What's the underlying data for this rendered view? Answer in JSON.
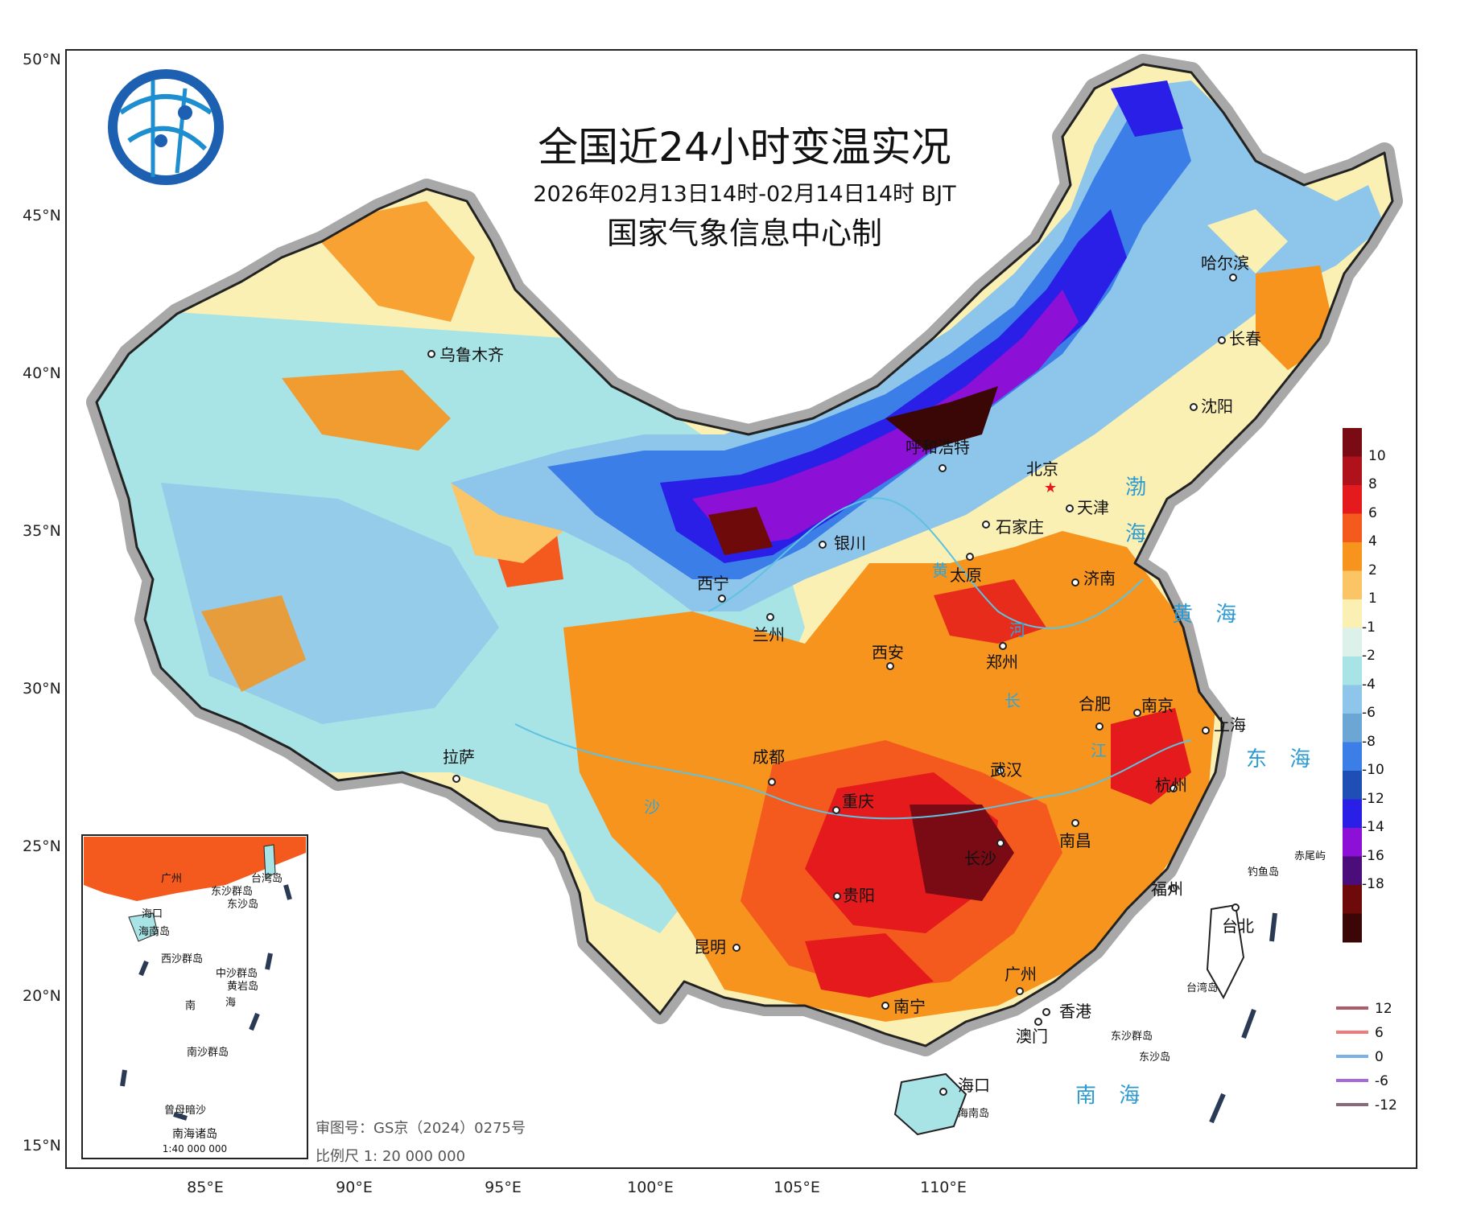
{
  "title": "全国近24小时变温实况",
  "subtitle": "2026年02月13日14时-02月14日14时 BJT",
  "producer": "国家气象信息中心制",
  "lat_labels": [
    "50°N",
    "45°N",
    "40°N",
    "35°N",
    "30°N",
    "25°N",
    "20°N",
    "15°N"
  ],
  "lon_labels": [
    "85°E",
    "90°E",
    "95°E",
    "100°E",
    "105°E",
    "110°E"
  ],
  "cities": [
    {
      "name": "乌鲁木齐"
    },
    {
      "name": "哈尔滨"
    },
    {
      "name": "长春"
    },
    {
      "name": "沈阳"
    },
    {
      "name": "呼和浩特"
    },
    {
      "name": "北京"
    },
    {
      "name": "天津"
    },
    {
      "name": "石家庄"
    },
    {
      "name": "银川"
    },
    {
      "name": "太原"
    },
    {
      "name": "济南"
    },
    {
      "name": "西宁"
    },
    {
      "name": "兰州"
    },
    {
      "name": "西安"
    },
    {
      "name": "郑州"
    },
    {
      "name": "合肥"
    },
    {
      "name": "南京"
    },
    {
      "name": "上海"
    },
    {
      "name": "拉萨"
    },
    {
      "name": "成都"
    },
    {
      "name": "武汉"
    },
    {
      "name": "杭州"
    },
    {
      "name": "重庆"
    },
    {
      "name": "长沙"
    },
    {
      "name": "南昌"
    },
    {
      "name": "福州"
    },
    {
      "name": "贵阳"
    },
    {
      "name": "台北"
    },
    {
      "name": "昆明"
    },
    {
      "name": "广州"
    },
    {
      "name": "南宁"
    },
    {
      "name": "香港"
    },
    {
      "name": "澳门"
    },
    {
      "name": "海口"
    },
    {
      "name": "台湾岛"
    },
    {
      "name": "海南岛"
    },
    {
      "name": "钓鱼岛"
    },
    {
      "name": "赤尾屿"
    },
    {
      "name": "东沙群岛"
    },
    {
      "name": "东沙岛"
    }
  ],
  "seas": [
    {
      "name": "渤"
    },
    {
      "name": "海"
    },
    {
      "name": "黄 海"
    },
    {
      "name": "东 海"
    },
    {
      "name": "南 海"
    }
  ],
  "rivers": [
    {
      "name": "黄"
    },
    {
      "name": "河"
    },
    {
      "name": "长"
    },
    {
      "name": "江"
    },
    {
      "name": "沙"
    }
  ],
  "inset": {
    "title": "南海诸岛",
    "scale": "1:40 000 000",
    "labels": [
      "海口",
      "海南岛",
      "西沙群岛",
      "中沙群岛",
      "黄岩岛",
      "南",
      "海",
      "南沙群岛",
      "曾母暗沙",
      "广州",
      "东沙群岛",
      "东沙岛",
      "台湾岛"
    ]
  },
  "footer": {
    "approval": "审图号：GS京（2024）0275号",
    "scale": "比例尺 1: 20 000 000"
  },
  "legend": {
    "levels": [
      "10",
      "8",
      "6",
      "4",
      "2",
      "1",
      "-1",
      "-2",
      "-4",
      "-6",
      "-8",
      "-10",
      "-12",
      "-14",
      "-16",
      "-18"
    ],
    "colors": [
      "#7a0a14",
      "#b0121c",
      "#e41a1c",
      "#f45a1e",
      "#f7941d",
      "#fbc565",
      "#faf0b4",
      "#dcf1ea",
      "#a8e3e6",
      "#8ec5ea",
      "#6ba6d4",
      "#3b7ee8",
      "#1f4fb5",
      "#2a1fe6",
      "#8c10d6",
      "#4a0d7a",
      "#6e0a0a",
      "#3a0606"
    ],
    "contour_lines": [
      {
        "label": "12",
        "color": "#b05a6a"
      },
      {
        "label": "6",
        "color": "#f07a7a"
      },
      {
        "label": "0",
        "color": "#7ab2e8"
      },
      {
        "label": "-6",
        "color": "#a56ad8"
      },
      {
        "label": "-12",
        "color": "#8a6a78"
      }
    ]
  }
}
